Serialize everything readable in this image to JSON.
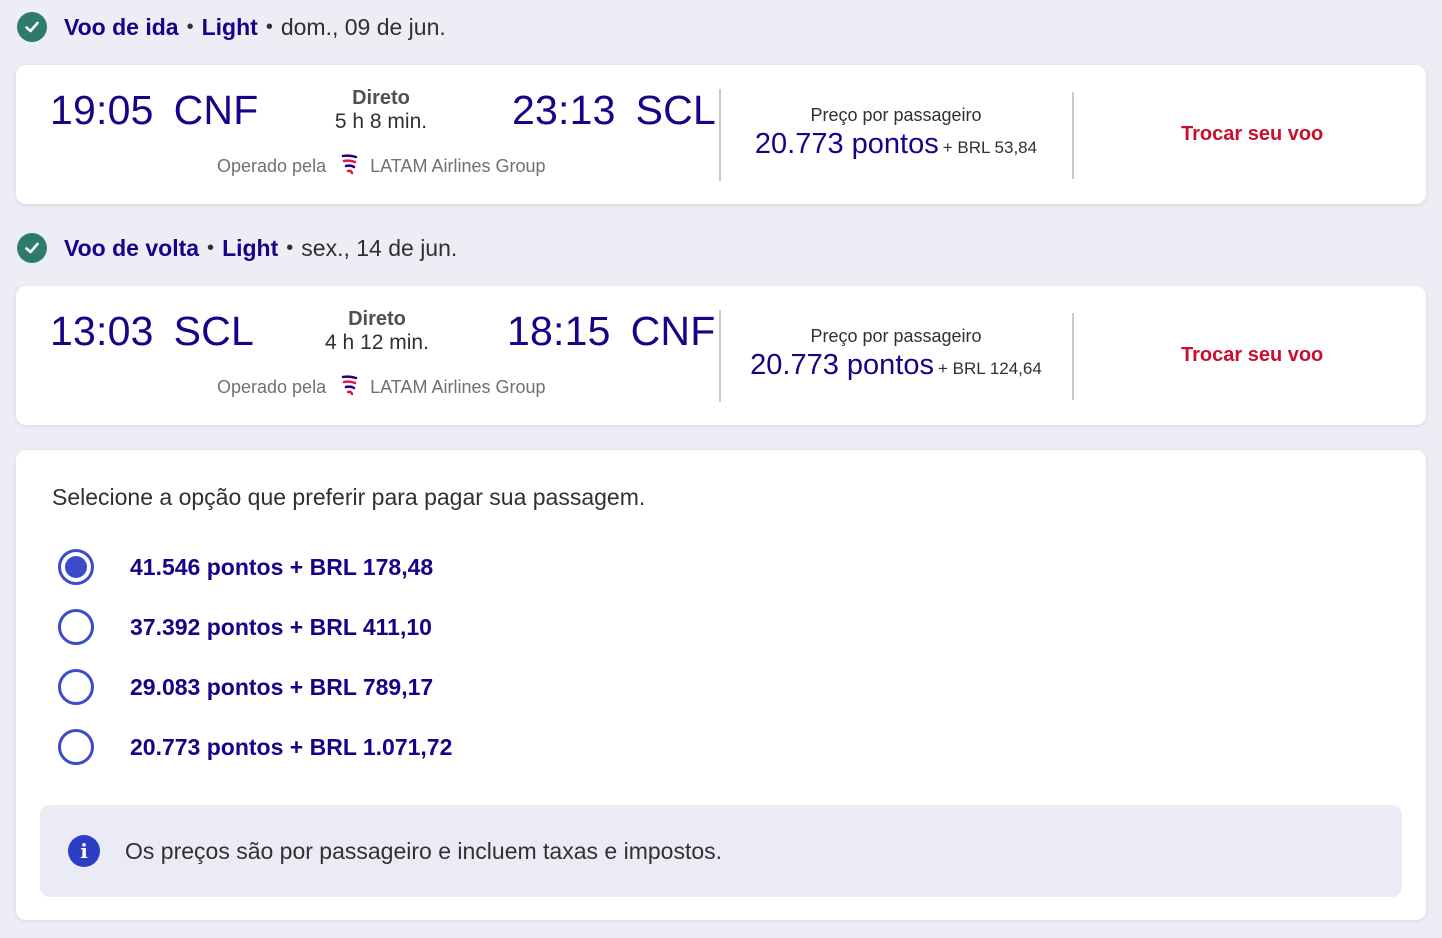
{
  "outbound": {
    "header": {
      "title": "Voo de ida",
      "fare": "Light",
      "date": "dom., 09 de jun."
    },
    "departure": {
      "time": "19:05",
      "code": "CNF"
    },
    "arrival": {
      "time": "23:13",
      "code": "SCL"
    },
    "stops": "Direto",
    "duration": "5 h 8 min.",
    "operated_by_label": "Operado pela",
    "airline": "LATAM Airlines Group",
    "price_label": "Preço por passageiro",
    "price_points": "20.773 pontos",
    "price_brl": "+ BRL 53,84",
    "change_label": "Trocar seu voo"
  },
  "return": {
    "header": {
      "title": "Voo de volta",
      "fare": "Light",
      "date": "sex., 14 de jun."
    },
    "departure": {
      "time": "13:03",
      "code": "SCL"
    },
    "arrival": {
      "time": "18:15",
      "code": "CNF"
    },
    "stops": "Direto",
    "duration": "4 h 12 min.",
    "operated_by_label": "Operado pela",
    "airline": "LATAM Airlines Group",
    "price_label": "Preço por passageiro",
    "price_points": "20.773 pontos",
    "price_brl": "+ BRL 124,64",
    "change_label": "Trocar seu voo"
  },
  "payment": {
    "title": "Selecione a opção que preferir para pagar sua passagem.",
    "options": [
      {
        "label": "41.546 pontos + BRL 178,48",
        "selected": true
      },
      {
        "label": "37.392 pontos + BRL 411,10",
        "selected": false
      },
      {
        "label": "29.083 pontos + BRL 789,17",
        "selected": false
      },
      {
        "label": "20.773 pontos + BRL 1.071,72",
        "selected": false
      }
    ],
    "info_icon": "info-icon",
    "info_text": "Os preços são por passageiro e incluem taxas e impostos."
  },
  "colors": {
    "brand_navy": "#1b0088",
    "accent_red": "#c8102e",
    "check_green": "#2f7a6e",
    "radio_blue": "#3a4ccc",
    "page_bg": "#ededf5"
  }
}
